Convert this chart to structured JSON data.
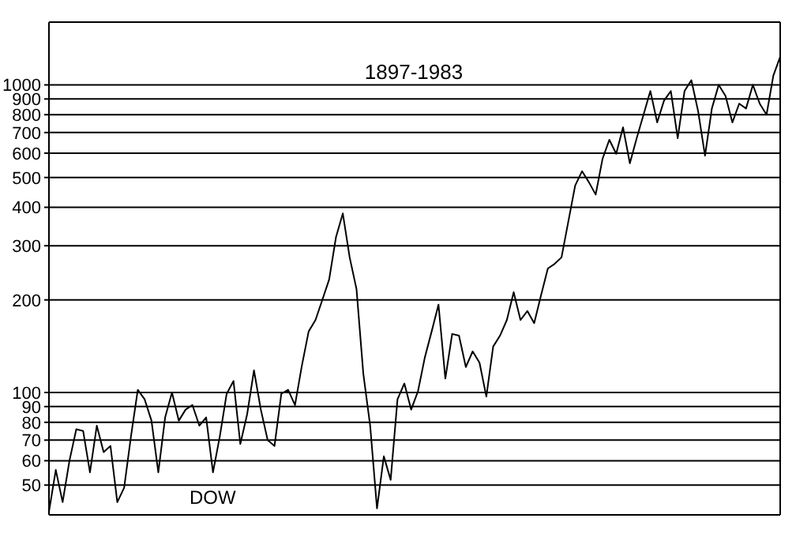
{
  "chart_data": {
    "type": "line",
    "title": "1897-1983",
    "annotations": [
      "DOW"
    ],
    "log": "y",
    "grid": "y",
    "tick_labels": "y",
    "marker": "none",
    "line_style": "solid",
    "categories": [
      null,
      null,
      null,
      null,
      null,
      null,
      null,
      null,
      null,
      null,
      null,
      null,
      null,
      null,
      null,
      null,
      null,
      null,
      null,
      null,
      null,
      null,
      null,
      null,
      null,
      null,
      null,
      null,
      null,
      null,
      null,
      null,
      null,
      null,
      null,
      null,
      null,
      null,
      null,
      null,
      null,
      null,
      null,
      null,
      null,
      null,
      null,
      null,
      null,
      null,
      null,
      null,
      null,
      null,
      null,
      null,
      null,
      null,
      null,
      null,
      null,
      null,
      null,
      null,
      null,
      null,
      null,
      null,
      null,
      null,
      null,
      null,
      null,
      null,
      null,
      null,
      null,
      null,
      null,
      null,
      null,
      null,
      null,
      null,
      null,
      null,
      null,
      null,
      null,
      null,
      null,
      null,
      null,
      null,
      null,
      null,
      null,
      null,
      null,
      null,
      null,
      null,
      null,
      null,
      null,
      null,
      null,
      null
    ],
    "series": [
      {
        "color": "#000000",
        "values": [
          41,
          56,
          44,
          60,
          76,
          75,
          55,
          78,
          64,
          67,
          44,
          49,
          72,
          102,
          95,
          81,
          55,
          83,
          100,
          81,
          88,
          91,
          78,
          83,
          55,
          72,
          99,
          109,
          68,
          85,
          118,
          88,
          70,
          67,
          99,
          102,
          91,
          122,
          158,
          172,
          200,
          233,
          320,
          382,
          275,
          217,
          115,
          78,
          42,
          62,
          52,
          95,
          107,
          88,
          101,
          130,
          158,
          193,
          111,
          155,
          153,
          121,
          136,
          125,
          97,
          141,
          153,
          172,
          212,
          172,
          184,
          168,
          207,
          253,
          262,
          275,
          360,
          471,
          524,
          483,
          440,
          575,
          663,
          597,
          728,
          556,
          671,
          800,
          955,
          755,
          889,
          955,
          671,
          955,
          1036,
          819,
          589,
          838,
          1000,
          921,
          755,
          869,
          838,
          1000,
          869,
          800,
          1073,
          1235
        ]
      }
    ],
    "ylim": [
      40,
      1600
    ],
    "yticks": [
      50,
      60,
      70,
      80,
      90,
      100,
      200,
      300,
      400,
      500,
      600,
      700,
      800,
      900,
      1000
    ]
  }
}
